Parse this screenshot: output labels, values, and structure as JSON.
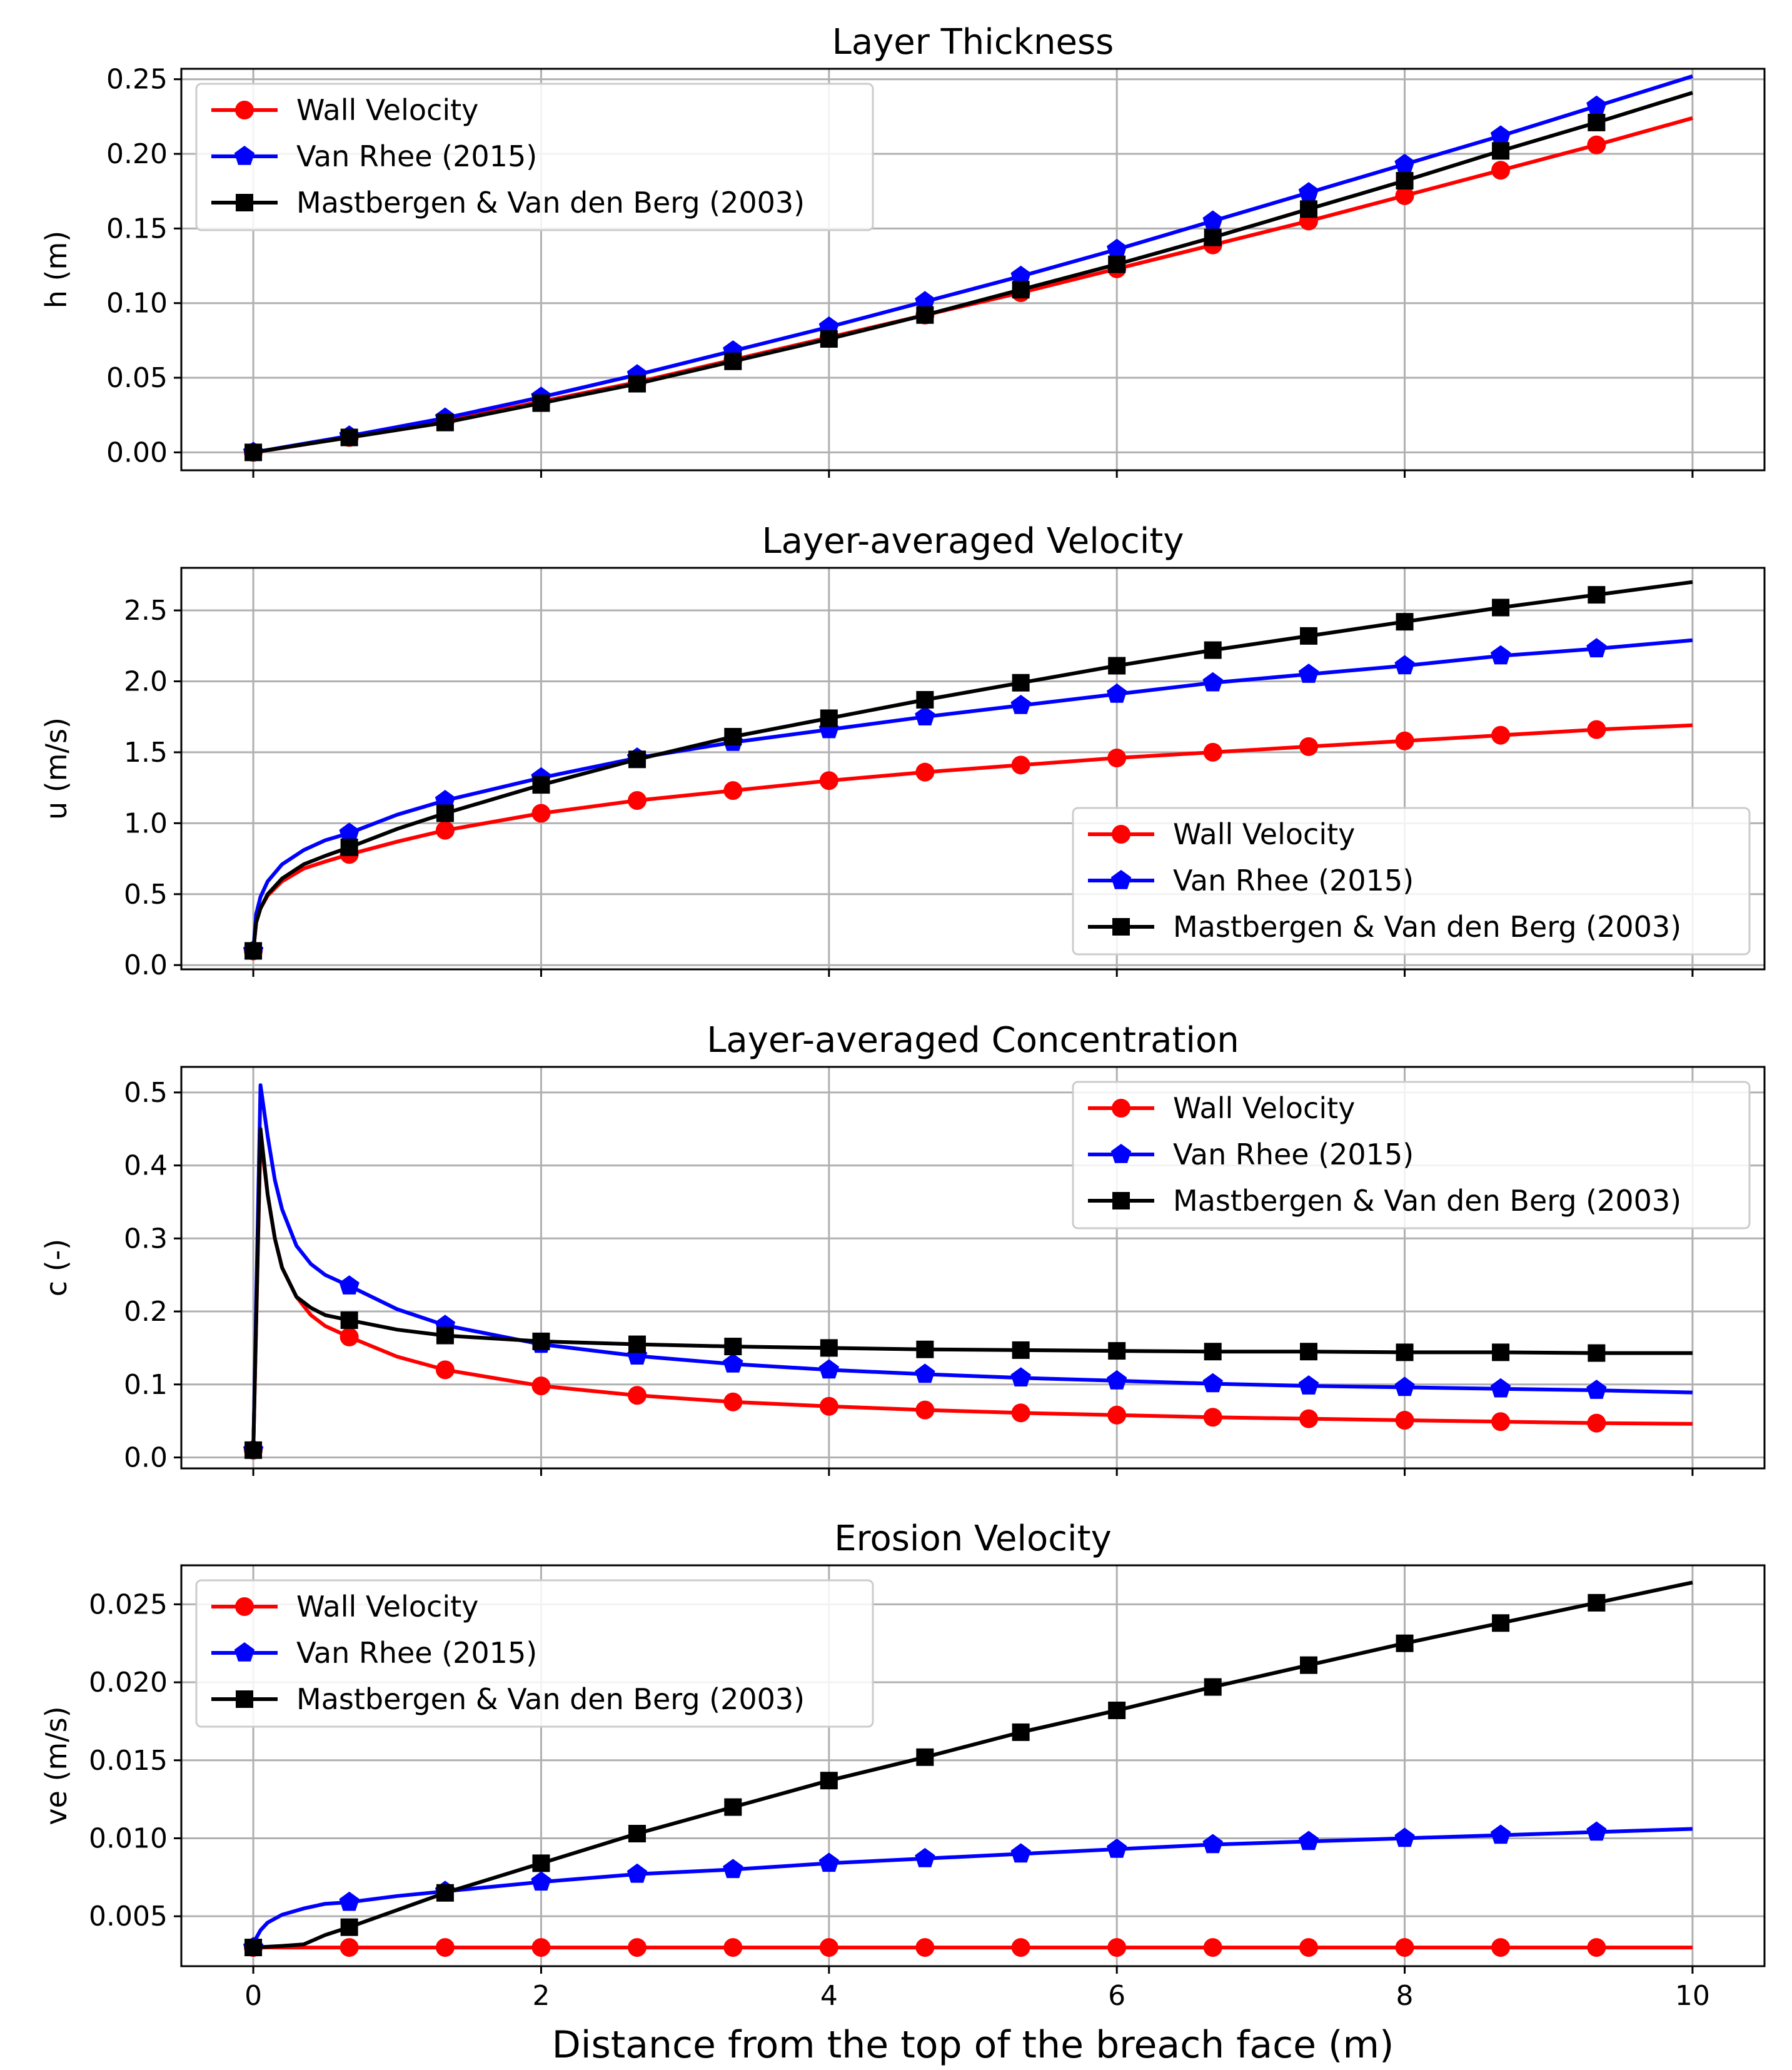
{
  "figure": {
    "xlabel": "Distance from the top of the breach face (m)"
  },
  "chart_data": [
    {
      "type": "line",
      "title": "Layer Thickness",
      "xlabel": "",
      "ylabel": "h (m)",
      "xlim": [
        -0.5,
        10.5
      ],
      "ylim": [
        -0.012,
        0.257
      ],
      "xticks": [
        "0",
        "2",
        "4",
        "6",
        "8",
        "10"
      ],
      "yticks": [
        "0.00",
        "0.05",
        "0.10",
        "0.15",
        "0.20",
        "0.25"
      ],
      "grid": true,
      "legend": "upper-left",
      "series": [
        {
          "name": "Wall Velocity",
          "color": "#ff0000",
          "marker": "circle",
          "x": [
            0,
            0.667,
            1.333,
            2,
            2.667,
            3.333,
            4,
            4.667,
            5.333,
            6,
            6.667,
            7.333,
            8,
            8.667,
            9.333,
            10
          ],
          "y": [
            0,
            0.01,
            0.021,
            0.034,
            0.047,
            0.062,
            0.077,
            0.092,
            0.107,
            0.123,
            0.139,
            0.155,
            0.172,
            0.189,
            0.206,
            0.224
          ]
        },
        {
          "name": "Van Rhee (2015)",
          "color": "#0000ff",
          "marker": "pentagon",
          "x": [
            0,
            0.667,
            1.333,
            2,
            2.667,
            3.333,
            4,
            4.667,
            5.333,
            6,
            6.667,
            7.333,
            8,
            8.667,
            9.333,
            10
          ],
          "y": [
            0,
            0.011,
            0.023,
            0.037,
            0.052,
            0.068,
            0.084,
            0.101,
            0.118,
            0.136,
            0.155,
            0.174,
            0.193,
            0.212,
            0.232,
            0.252
          ]
        },
        {
          "name": "Mastbergen & Van den Berg (2003)",
          "color": "#000000",
          "marker": "square",
          "x": [
            0,
            0.667,
            1.333,
            2,
            2.667,
            3.333,
            4,
            4.667,
            5.333,
            6,
            6.667,
            7.333,
            8,
            8.667,
            9.333,
            10
          ],
          "y": [
            0,
            0.01,
            0.02,
            0.033,
            0.046,
            0.061,
            0.076,
            0.092,
            0.109,
            0.126,
            0.144,
            0.163,
            0.182,
            0.202,
            0.221,
            0.241
          ]
        }
      ]
    },
    {
      "type": "line",
      "title": "Layer-averaged Velocity",
      "xlabel": "",
      "ylabel": "u (m/s)",
      "xlim": [
        -0.5,
        10.5
      ],
      "ylim": [
        -0.03,
        2.8
      ],
      "xticks": [
        "0",
        "2",
        "4",
        "6",
        "8",
        "10"
      ],
      "yticks": [
        "0.0",
        "0.5",
        "1.0",
        "1.5",
        "2.0",
        "2.5"
      ],
      "grid": true,
      "legend": "lower-right",
      "series": [
        {
          "name": "Wall Velocity",
          "color": "#ff0000",
          "marker": "circle",
          "x": [
            0,
            0.02,
            0.05,
            0.1,
            0.2,
            0.35,
            0.5,
            0.667,
            1.0,
            1.333,
            2,
            2.667,
            3.333,
            4,
            4.667,
            5.333,
            6,
            6.667,
            7.333,
            8,
            8.667,
            9.333,
            10
          ],
          "y": [
            0.1,
            0.3,
            0.4,
            0.49,
            0.59,
            0.68,
            0.73,
            0.78,
            0.87,
            0.95,
            1.07,
            1.16,
            1.23,
            1.3,
            1.36,
            1.41,
            1.46,
            1.5,
            1.54,
            1.58,
            1.62,
            1.66,
            1.69
          ]
        },
        {
          "name": "Van Rhee (2015)",
          "color": "#0000ff",
          "marker": "pentagon",
          "x": [
            0,
            0.02,
            0.05,
            0.1,
            0.2,
            0.35,
            0.5,
            0.667,
            1.0,
            1.333,
            2,
            2.667,
            3.333,
            4,
            4.667,
            5.333,
            6,
            6.667,
            7.333,
            8,
            8.667,
            9.333,
            10
          ],
          "y": [
            0.1,
            0.36,
            0.48,
            0.59,
            0.71,
            0.81,
            0.88,
            0.93,
            1.06,
            1.16,
            1.32,
            1.46,
            1.57,
            1.66,
            1.75,
            1.83,
            1.91,
            1.99,
            2.05,
            2.11,
            2.18,
            2.23,
            2.29
          ]
        },
        {
          "name": "Mastbergen & Van den Berg (2003)",
          "color": "#000000",
          "marker": "square",
          "x": [
            0,
            0.02,
            0.05,
            0.1,
            0.2,
            0.35,
            0.5,
            0.667,
            1.0,
            1.333,
            2,
            2.667,
            3.333,
            4,
            4.667,
            5.333,
            6,
            6.667,
            7.333,
            8,
            8.667,
            9.333,
            10
          ],
          "y": [
            0.1,
            0.3,
            0.4,
            0.5,
            0.61,
            0.71,
            0.77,
            0.83,
            0.96,
            1.07,
            1.27,
            1.45,
            1.61,
            1.74,
            1.87,
            1.99,
            2.11,
            2.22,
            2.32,
            2.42,
            2.52,
            2.61,
            2.7
          ]
        }
      ]
    },
    {
      "type": "line",
      "title": "Layer-averaged Concentration",
      "xlabel": "",
      "ylabel": "c (-)",
      "xlim": [
        -0.5,
        10.5
      ],
      "ylim": [
        -0.015,
        0.535
      ],
      "xticks": [
        "0",
        "2",
        "4",
        "6",
        "8",
        "10"
      ],
      "yticks": [
        "0.0",
        "0.1",
        "0.2",
        "0.3",
        "0.4",
        "0.5"
      ],
      "grid": true,
      "legend": "upper-right",
      "series": [
        {
          "name": "Wall Velocity",
          "color": "#ff0000",
          "marker": "circle",
          "x": [
            0,
            0.05,
            0.1,
            0.15,
            0.2,
            0.3,
            0.4,
            0.5,
            0.667,
            1.0,
            1.333,
            2,
            2.667,
            3.333,
            4,
            4.667,
            5.333,
            6,
            6.667,
            7.333,
            8,
            8.667,
            9.333,
            10
          ],
          "y": [
            0.01,
            0.44,
            0.36,
            0.3,
            0.26,
            0.22,
            0.195,
            0.18,
            0.165,
            0.138,
            0.12,
            0.098,
            0.085,
            0.076,
            0.07,
            0.065,
            0.061,
            0.058,
            0.055,
            0.053,
            0.051,
            0.049,
            0.047,
            0.046
          ]
        },
        {
          "name": "Van Rhee (2015)",
          "color": "#0000ff",
          "marker": "pentagon",
          "x": [
            0,
            0.05,
            0.1,
            0.15,
            0.2,
            0.3,
            0.4,
            0.5,
            0.667,
            1.0,
            1.333,
            2,
            2.667,
            3.333,
            4,
            4.667,
            5.333,
            6,
            6.667,
            7.333,
            8,
            8.667,
            9.333,
            10
          ],
          "y": [
            0.01,
            0.51,
            0.44,
            0.38,
            0.34,
            0.29,
            0.265,
            0.25,
            0.235,
            0.203,
            0.181,
            0.155,
            0.139,
            0.128,
            0.12,
            0.114,
            0.109,
            0.105,
            0.101,
            0.098,
            0.096,
            0.094,
            0.092,
            0.089
          ]
        },
        {
          "name": "Mastbergen & Van den Berg (2003)",
          "color": "#000000",
          "marker": "square",
          "x": [
            0,
            0.05,
            0.1,
            0.15,
            0.2,
            0.3,
            0.4,
            0.5,
            0.667,
            1.0,
            1.333,
            2,
            2.667,
            3.333,
            4,
            4.667,
            5.333,
            6,
            6.667,
            7.333,
            8,
            8.667,
            9.333,
            10
          ],
          "y": [
            0.01,
            0.45,
            0.36,
            0.3,
            0.26,
            0.22,
            0.205,
            0.195,
            0.188,
            0.175,
            0.167,
            0.159,
            0.155,
            0.152,
            0.15,
            0.148,
            0.147,
            0.146,
            0.145,
            0.145,
            0.144,
            0.144,
            0.143,
            0.143
          ]
        }
      ]
    },
    {
      "type": "line",
      "title": "Erosion Velocity",
      "xlabel": "Distance from the top of the breach face (m)",
      "ylabel": "ve (m/s)",
      "xlim": [
        -0.5,
        10.5
      ],
      "ylim": [
        0.0018,
        0.0275
      ],
      "xticks": [
        "0",
        "2",
        "4",
        "6",
        "8",
        "10"
      ],
      "yticks": [
        "0.005",
        "0.010",
        "0.015",
        "0.020",
        "0.025"
      ],
      "grid": true,
      "legend": "upper-left",
      "series": [
        {
          "name": "Wall Velocity",
          "color": "#ff0000",
          "marker": "circle",
          "x": [
            0,
            0.667,
            1.333,
            2,
            2.667,
            3.333,
            4,
            4.667,
            5.333,
            6,
            6.667,
            7.333,
            8,
            8.667,
            9.333,
            10
          ],
          "y": [
            0.003,
            0.003,
            0.003,
            0.003,
            0.003,
            0.003,
            0.003,
            0.003,
            0.003,
            0.003,
            0.003,
            0.003,
            0.003,
            0.003,
            0.003,
            0.003
          ]
        },
        {
          "name": "Van Rhee (2015)",
          "color": "#0000ff",
          "marker": "pentagon",
          "x": [
            0,
            0.02,
            0.05,
            0.1,
            0.2,
            0.35,
            0.5,
            0.667,
            1.0,
            1.333,
            2,
            2.667,
            3.333,
            4,
            4.667,
            5.333,
            6,
            6.667,
            7.333,
            8,
            8.667,
            9.333,
            10
          ],
          "y": [
            0.003,
            0.0036,
            0.0041,
            0.0046,
            0.0051,
            0.0055,
            0.0058,
            0.0059,
            0.0063,
            0.0066,
            0.0072,
            0.0077,
            0.008,
            0.0084,
            0.0087,
            0.009,
            0.0093,
            0.0096,
            0.0098,
            0.01,
            0.0102,
            0.0104,
            0.0106
          ]
        },
        {
          "name": "Mastbergen & Van den Berg (2003)",
          "color": "#000000",
          "marker": "square",
          "x": [
            0,
            0.2,
            0.35,
            0.5,
            0.667,
            1.0,
            1.333,
            2,
            2.667,
            3.333,
            4,
            4.667,
            5.333,
            6,
            6.667,
            7.333,
            8,
            8.667,
            9.333,
            10
          ],
          "y": [
            0.003,
            0.0031,
            0.0032,
            0.0038,
            0.0043,
            0.0054,
            0.0065,
            0.0084,
            0.0103,
            0.012,
            0.0137,
            0.0152,
            0.0168,
            0.0182,
            0.0197,
            0.0211,
            0.0225,
            0.0238,
            0.0251,
            0.0264
          ]
        }
      ]
    }
  ]
}
